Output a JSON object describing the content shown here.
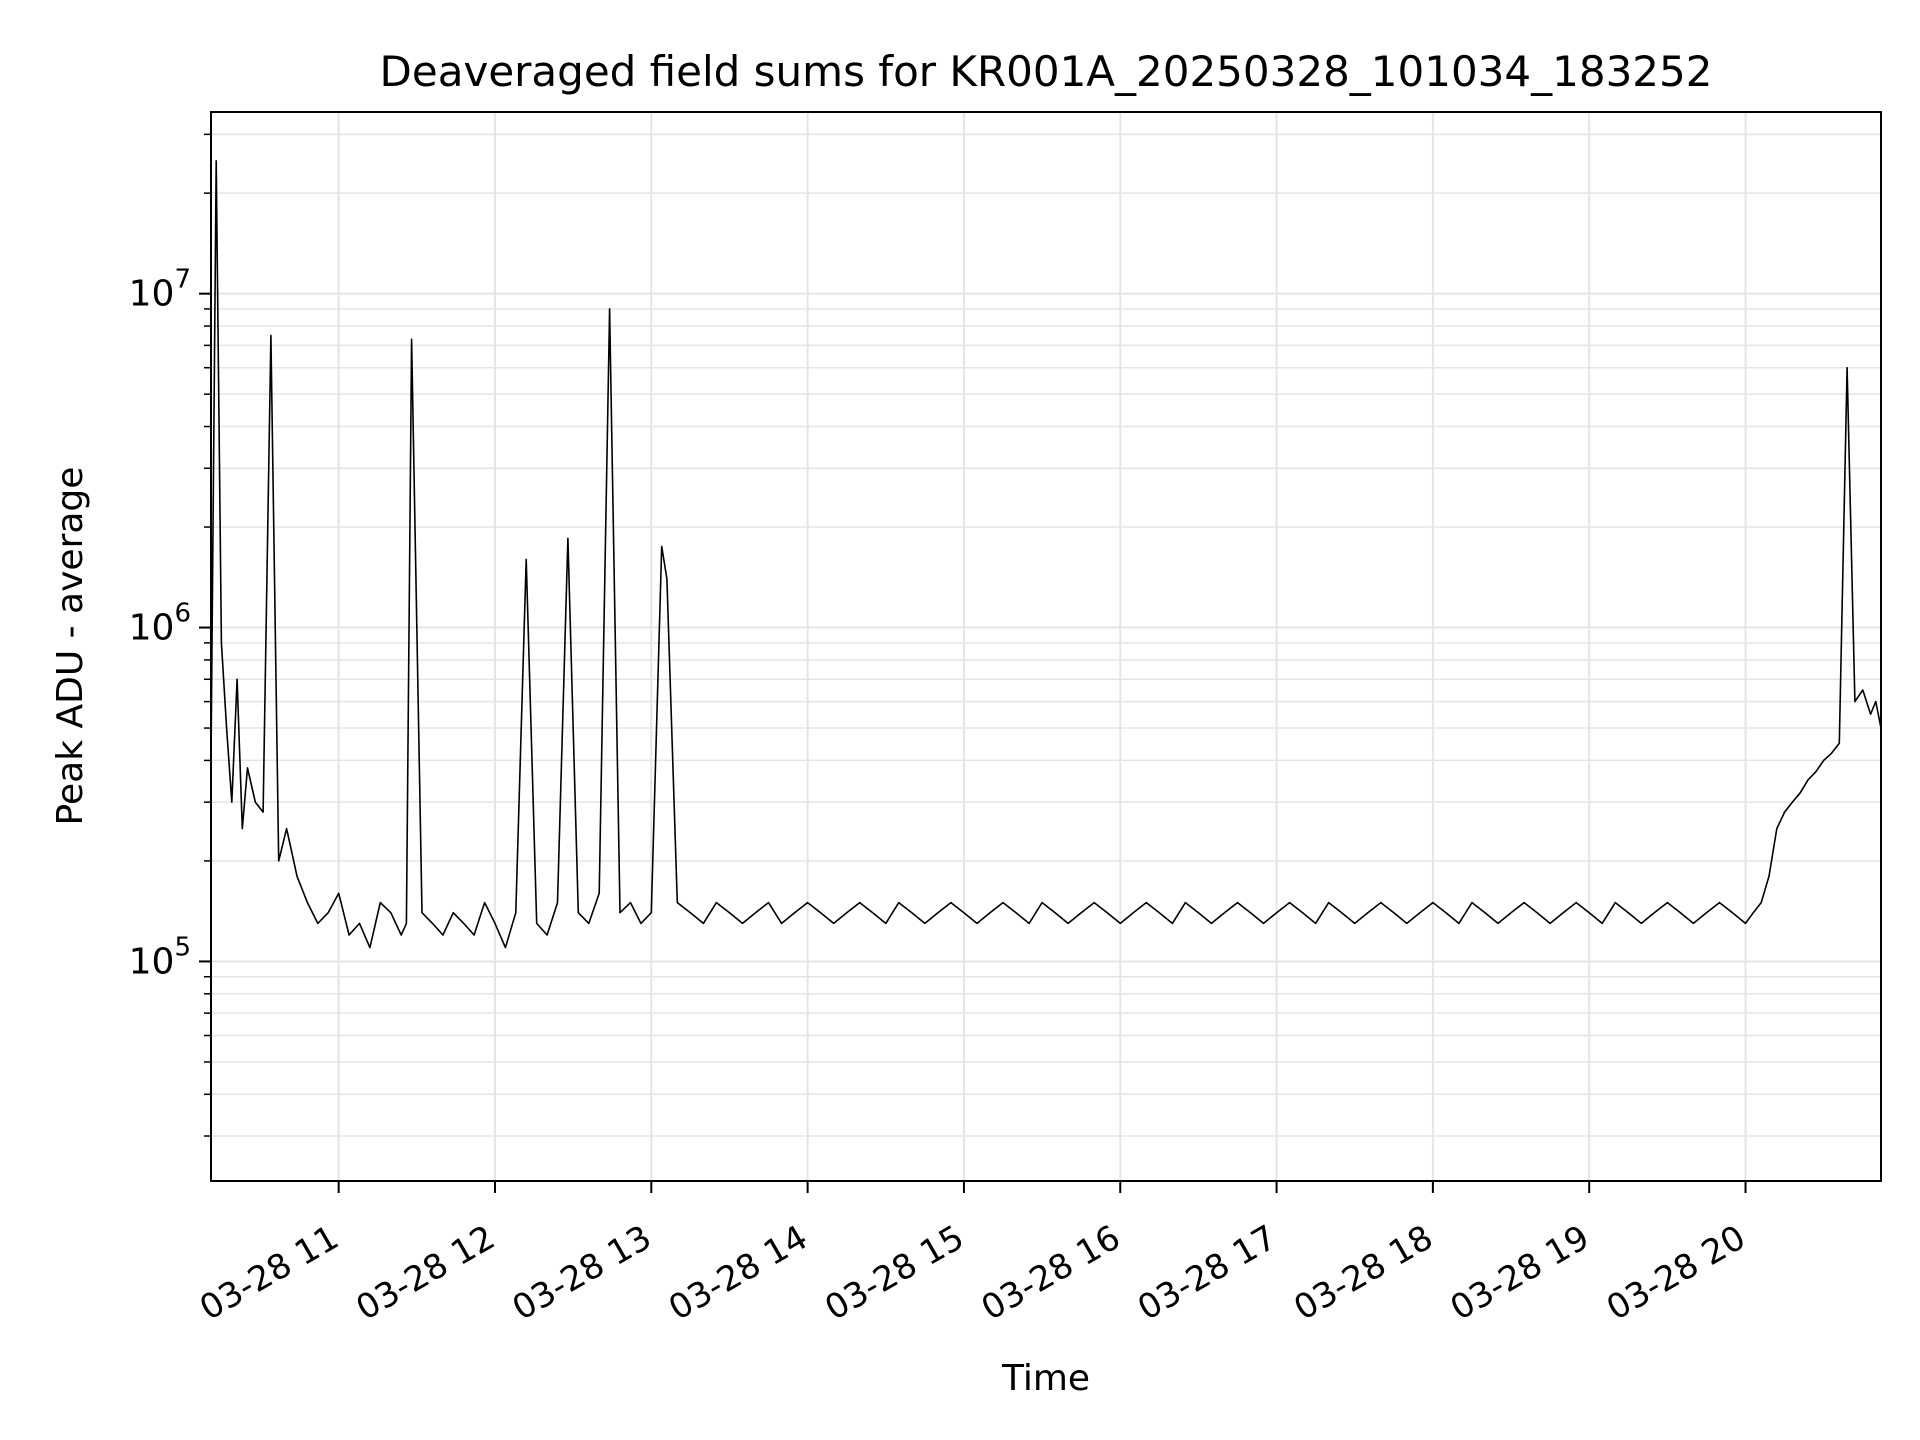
{
  "chart_data": {
    "type": "line",
    "title": "Deaveraged field sums for KR001A_20250328_101034_183252",
    "xlabel": "Time",
    "ylabel": "Peak ADU - average",
    "yscale": "log",
    "ylim": [
      22000,
      35000000
    ],
    "xlim": [
      "2025-03-28T10:11:00",
      "2025-03-28T20:52:00"
    ],
    "grid": true,
    "line_color": "#000000",
    "grid_color": "#e5e5e5",
    "x_ticks": [
      {
        "value": "2025-03-28T11:00:00",
        "label": "03-28 11"
      },
      {
        "value": "2025-03-28T12:00:00",
        "label": "03-28 12"
      },
      {
        "value": "2025-03-28T13:00:00",
        "label": "03-28 13"
      },
      {
        "value": "2025-03-28T14:00:00",
        "label": "03-28 14"
      },
      {
        "value": "2025-03-28T15:00:00",
        "label": "03-28 15"
      },
      {
        "value": "2025-03-28T16:00:00",
        "label": "03-28 16"
      },
      {
        "value": "2025-03-28T17:00:00",
        "label": "03-28 17"
      },
      {
        "value": "2025-03-28T18:00:00",
        "label": "03-28 18"
      },
      {
        "value": "2025-03-28T19:00:00",
        "label": "03-28 19"
      },
      {
        "value": "2025-03-28T20:00:00",
        "label": "03-28 20"
      }
    ],
    "y_ticks": [
      {
        "value": 100000,
        "base": "10",
        "exp": "5"
      },
      {
        "value": 1000000,
        "base": "10",
        "exp": "6"
      },
      {
        "value": 10000000,
        "base": "10",
        "exp": "7"
      }
    ],
    "series": [
      {
        "x": [
          "2025-03-28T10:11:00",
          "2025-03-28T10:13:00",
          "2025-03-28T10:15:00",
          "2025-03-28T10:17:00",
          "2025-03-28T10:19:00",
          "2025-03-28T10:21:00",
          "2025-03-28T10:23:00",
          "2025-03-28T10:25:00",
          "2025-03-28T10:28:00",
          "2025-03-28T10:31:00",
          "2025-03-28T10:34:00",
          "2025-03-28T10:37:00",
          "2025-03-28T10:40:00",
          "2025-03-28T10:44:00",
          "2025-03-28T10:48:00",
          "2025-03-28T10:52:00",
          "2025-03-28T10:56:00",
          "2025-03-28T11:00:00",
          "2025-03-28T11:04:00",
          "2025-03-28T11:08:00",
          "2025-03-28T11:12:00",
          "2025-03-28T11:16:00",
          "2025-03-28T11:20:00",
          "2025-03-28T11:24:00",
          "2025-03-28T11:26:00",
          "2025-03-28T11:28:00",
          "2025-03-28T11:32:00",
          "2025-03-28T11:36:00",
          "2025-03-28T11:40:00",
          "2025-03-28T11:44:00",
          "2025-03-28T11:48:00",
          "2025-03-28T11:52:00",
          "2025-03-28T11:56:00",
          "2025-03-28T12:00:00",
          "2025-03-28T12:04:00",
          "2025-03-28T12:08:00",
          "2025-03-28T12:12:00",
          "2025-03-28T12:16:00",
          "2025-03-28T12:20:00",
          "2025-03-28T12:24:00",
          "2025-03-28T12:28:00",
          "2025-03-28T12:32:00",
          "2025-03-28T12:36:00",
          "2025-03-28T12:40:00",
          "2025-03-28T12:44:00",
          "2025-03-28T12:48:00",
          "2025-03-28T12:52:00",
          "2025-03-28T12:56:00",
          "2025-03-28T13:00:00",
          "2025-03-28T13:04:00",
          "2025-03-28T13:06:00",
          "2025-03-28T13:10:00",
          "2025-03-28T13:15:00",
          "2025-03-28T13:20:00",
          "2025-03-28T13:25:00",
          "2025-03-28T13:30:00",
          "2025-03-28T13:35:00",
          "2025-03-28T13:40:00",
          "2025-03-28T13:45:00",
          "2025-03-28T13:50:00",
          "2025-03-28T13:55:00",
          "2025-03-28T14:00:00",
          "2025-03-28T14:05:00",
          "2025-03-28T14:10:00",
          "2025-03-28T14:15:00",
          "2025-03-28T14:20:00",
          "2025-03-28T14:25:00",
          "2025-03-28T14:30:00",
          "2025-03-28T14:35:00",
          "2025-03-28T14:40:00",
          "2025-03-28T14:45:00",
          "2025-03-28T14:50:00",
          "2025-03-28T14:55:00",
          "2025-03-28T15:00:00",
          "2025-03-28T15:05:00",
          "2025-03-28T15:10:00",
          "2025-03-28T15:15:00",
          "2025-03-28T15:20:00",
          "2025-03-28T15:25:00",
          "2025-03-28T15:30:00",
          "2025-03-28T15:35:00",
          "2025-03-28T15:40:00",
          "2025-03-28T15:45:00",
          "2025-03-28T15:50:00",
          "2025-03-28T15:55:00",
          "2025-03-28T16:00:00",
          "2025-03-28T16:05:00",
          "2025-03-28T16:10:00",
          "2025-03-28T16:15:00",
          "2025-03-28T16:20:00",
          "2025-03-28T16:25:00",
          "2025-03-28T16:30:00",
          "2025-03-28T16:35:00",
          "2025-03-28T16:40:00",
          "2025-03-28T16:45:00",
          "2025-03-28T16:50:00",
          "2025-03-28T16:55:00",
          "2025-03-28T17:00:00",
          "2025-03-28T17:05:00",
          "2025-03-28T17:10:00",
          "2025-03-28T17:15:00",
          "2025-03-28T17:20:00",
          "2025-03-28T17:25:00",
          "2025-03-28T17:30:00",
          "2025-03-28T17:35:00",
          "2025-03-28T17:40:00",
          "2025-03-28T17:45:00",
          "2025-03-28T17:50:00",
          "2025-03-28T17:55:00",
          "2025-03-28T18:00:00",
          "2025-03-28T18:05:00",
          "2025-03-28T18:10:00",
          "2025-03-28T18:15:00",
          "2025-03-28T18:20:00",
          "2025-03-28T18:25:00",
          "2025-03-28T18:30:00",
          "2025-03-28T18:35:00",
          "2025-03-28T18:40:00",
          "2025-03-28T18:45:00",
          "2025-03-28T18:50:00",
          "2025-03-28T18:55:00",
          "2025-03-28T19:00:00",
          "2025-03-28T19:05:00",
          "2025-03-28T19:10:00",
          "2025-03-28T19:15:00",
          "2025-03-28T19:20:00",
          "2025-03-28T19:25:00",
          "2025-03-28T19:30:00",
          "2025-03-28T19:35:00",
          "2025-03-28T19:40:00",
          "2025-03-28T19:45:00",
          "2025-03-28T19:50:00",
          "2025-03-28T19:55:00",
          "2025-03-28T20:00:00",
          "2025-03-28T20:03:00",
          "2025-03-28T20:06:00",
          "2025-03-28T20:09:00",
          "2025-03-28T20:12:00",
          "2025-03-28T20:15:00",
          "2025-03-28T20:18:00",
          "2025-03-28T20:21:00",
          "2025-03-28T20:24:00",
          "2025-03-28T20:27:00",
          "2025-03-28T20:30:00",
          "2025-03-28T20:33:00",
          "2025-03-28T20:36:00",
          "2025-03-28T20:39:00",
          "2025-03-28T20:42:00",
          "2025-03-28T20:45:00",
          "2025-03-28T20:48:00",
          "2025-03-28T20:50:00",
          "2025-03-28T20:52:00"
        ],
        "y": [
          400000,
          25000000,
          900000,
          500000,
          300000,
          700000,
          250000,
          380000,
          300000,
          280000,
          7500000,
          200000,
          250000,
          180000,
          150000,
          130000,
          140000,
          160000,
          120000,
          130000,
          110000,
          150000,
          140000,
          120000,
          130000,
          7300000,
          140000,
          130000,
          120000,
          140000,
          130000,
          120000,
          150000,
          130000,
          110000,
          140000,
          1600000,
          130000,
          120000,
          150000,
          1850000,
          140000,
          130000,
          160000,
          9000000,
          140000,
          150000,
          130000,
          140000,
          1750000,
          1400000,
          150000,
          140000,
          130000,
          150000,
          140000,
          130000,
          140000,
          150000,
          130000,
          140000,
          150000,
          140000,
          130000,
          140000,
          150000,
          140000,
          130000,
          150000,
          140000,
          130000,
          140000,
          150000,
          140000,
          130000,
          140000,
          150000,
          140000,
          130000,
          150000,
          140000,
          130000,
          140000,
          150000,
          140000,
          130000,
          140000,
          150000,
          140000,
          130000,
          150000,
          140000,
          130000,
          140000,
          150000,
          140000,
          130000,
          140000,
          150000,
          140000,
          130000,
          150000,
          140000,
          130000,
          140000,
          150000,
          140000,
          130000,
          140000,
          150000,
          140000,
          130000,
          150000,
          140000,
          130000,
          140000,
          150000,
          140000,
          130000,
          140000,
          150000,
          140000,
          130000,
          150000,
          140000,
          130000,
          140000,
          150000,
          140000,
          130000,
          140000,
          150000,
          140000,
          130000,
          140000,
          150000,
          180000,
          250000,
          280000,
          300000,
          320000,
          350000,
          370000,
          400000,
          420000,
          450000,
          6000000,
          600000,
          650000,
          550000,
          600000,
          500000
        ]
      }
    ]
  }
}
